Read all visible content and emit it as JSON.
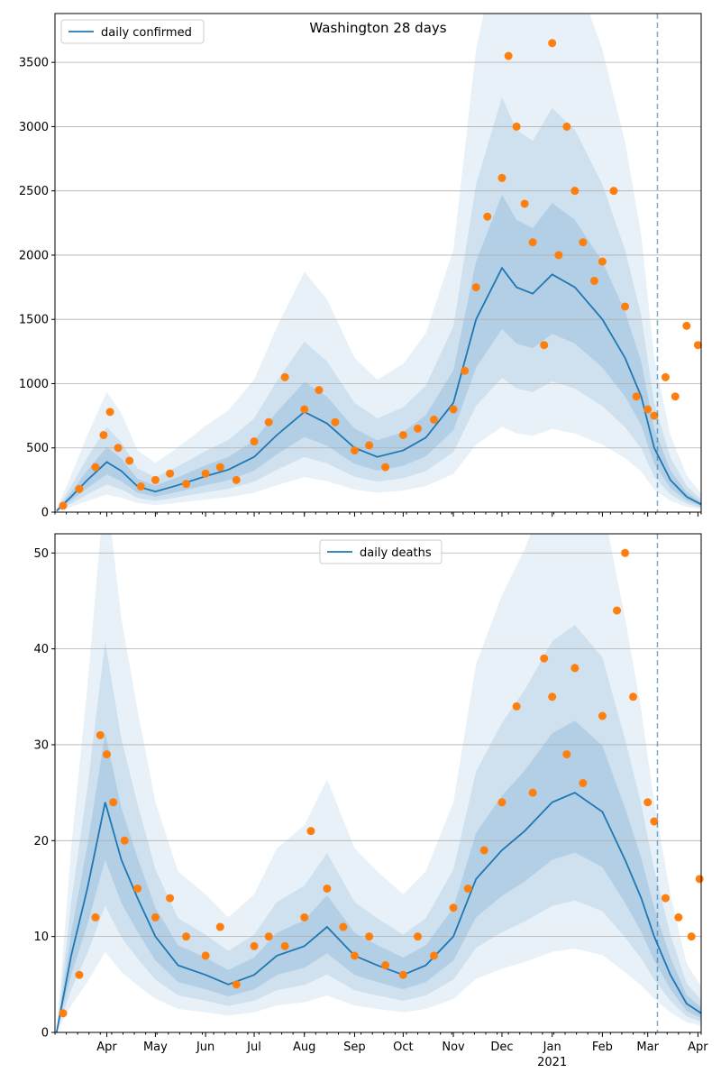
{
  "chart_data": [
    {
      "type": "line",
      "title": "Washington 28 days",
      "legend": [
        "daily confirmed"
      ],
      "legend_placement": "top-left",
      "ylim": [
        0,
        3880
      ],
      "yticks": [
        0,
        500,
        1000,
        1500,
        2000,
        2500,
        3000,
        3500
      ],
      "grid": "y",
      "series": [
        {
          "name": "daily confirmed",
          "kind": "line",
          "color": "#1f77b4",
          "x": [
            "2020-03-01",
            "2020-03-10",
            "2020-03-20",
            "2020-04-01",
            "2020-04-10",
            "2020-04-20",
            "2020-05-01",
            "2020-05-15",
            "2020-06-01",
            "2020-06-15",
            "2020-07-01",
            "2020-07-15",
            "2020-08-01",
            "2020-08-15",
            "2020-09-01",
            "2020-09-15",
            "2020-10-01",
            "2020-10-15",
            "2020-11-01",
            "2020-11-15",
            "2020-12-01",
            "2020-12-10",
            "2020-12-20",
            "2021-01-01",
            "2021-01-15",
            "2021-02-01",
            "2021-02-15",
            "2021-02-25",
            "2021-03-05",
            "2021-03-15",
            "2021-03-25",
            "2021-04-03"
          ],
          "values": [
            10,
            120,
            250,
            390,
            320,
            200,
            160,
            210,
            280,
            330,
            430,
            600,
            780,
            690,
            500,
            430,
            480,
            580,
            850,
            1500,
            1900,
            1750,
            1700,
            1850,
            1750,
            1500,
            1200,
            900,
            500,
            250,
            120,
            60
          ]
        },
        {
          "name": "observed",
          "kind": "scatter",
          "color": "#ff7f0e",
          "x": [
            "2020-03-05",
            "2020-03-15",
            "2020-03-25",
            "2020-03-30",
            "2020-04-03",
            "2020-04-08",
            "2020-04-15",
            "2020-04-22",
            "2020-05-01",
            "2020-05-10",
            "2020-05-20",
            "2020-06-01",
            "2020-06-10",
            "2020-06-20",
            "2020-07-01",
            "2020-07-10",
            "2020-07-20",
            "2020-08-01",
            "2020-08-10",
            "2020-08-20",
            "2020-09-01",
            "2020-09-10",
            "2020-09-20",
            "2020-10-01",
            "2020-10-10",
            "2020-10-20",
            "2020-11-01",
            "2020-11-08",
            "2020-11-15",
            "2020-11-22",
            "2020-12-01",
            "2020-12-05",
            "2020-12-10",
            "2020-12-15",
            "2020-12-20",
            "2020-12-27",
            "2021-01-01",
            "2021-01-05",
            "2021-01-10",
            "2021-01-15",
            "2021-01-20",
            "2021-01-27",
            "2021-02-01",
            "2021-02-08",
            "2021-02-15",
            "2021-02-22",
            "2021-03-01",
            "2021-03-05",
            "2021-03-12",
            "2021-03-18",
            "2021-03-25",
            "2021-04-01"
          ],
          "values": [
            50,
            180,
            350,
            600,
            780,
            500,
            400,
            200,
            250,
            300,
            220,
            300,
            350,
            250,
            550,
            700,
            1050,
            800,
            950,
            700,
            480,
            520,
            350,
            600,
            650,
            720,
            800,
            1100,
            1750,
            2300,
            2600,
            3550,
            3000,
            2400,
            2100,
            1300,
            3650,
            2000,
            3000,
            2500,
            2100,
            1800,
            1950,
            2500,
            1600,
            900,
            800,
            750,
            1050,
            900,
            1450,
            1300
          ]
        }
      ]
    },
    {
      "type": "line",
      "title": "",
      "legend": [
        "daily deaths"
      ],
      "legend_placement": "top-center",
      "ylim": [
        0,
        52
      ],
      "yticks": [
        0,
        10,
        20,
        30,
        40,
        50
      ],
      "grid": "y",
      "series": [
        {
          "name": "daily deaths",
          "kind": "line",
          "color": "#1f77b4",
          "x": [
            "2020-03-01",
            "2020-03-10",
            "2020-03-20",
            "2020-03-31",
            "2020-04-10",
            "2020-04-20",
            "2020-05-01",
            "2020-05-15",
            "2020-06-01",
            "2020-06-15",
            "2020-07-01",
            "2020-07-15",
            "2020-08-01",
            "2020-08-15",
            "2020-09-01",
            "2020-09-15",
            "2020-10-01",
            "2020-10-15",
            "2020-11-01",
            "2020-11-15",
            "2020-12-01",
            "2020-12-15",
            "2021-01-01",
            "2021-01-15",
            "2021-02-01",
            "2021-02-15",
            "2021-02-25",
            "2021-03-05",
            "2021-03-15",
            "2021-03-25",
            "2021-04-03"
          ],
          "values": [
            0,
            8,
            15,
            24,
            18,
            14,
            10,
            7,
            6,
            5,
            6,
            8,
            9,
            11,
            8,
            7,
            6,
            7,
            10,
            16,
            19,
            21,
            24,
            25,
            23,
            18,
            14,
            10,
            6,
            3,
            2
          ]
        },
        {
          "name": "observed",
          "kind": "scatter",
          "color": "#ff7f0e",
          "x": [
            "2020-03-05",
            "2020-03-15",
            "2020-03-25",
            "2020-03-28",
            "2020-04-01",
            "2020-04-05",
            "2020-04-12",
            "2020-04-20",
            "2020-05-01",
            "2020-05-10",
            "2020-05-20",
            "2020-06-01",
            "2020-06-10",
            "2020-06-20",
            "2020-07-01",
            "2020-07-10",
            "2020-07-20",
            "2020-08-01",
            "2020-08-05",
            "2020-08-15",
            "2020-08-25",
            "2020-09-01",
            "2020-09-10",
            "2020-09-20",
            "2020-10-01",
            "2020-10-10",
            "2020-10-20",
            "2020-11-01",
            "2020-11-10",
            "2020-11-20",
            "2020-12-01",
            "2020-12-10",
            "2020-12-20",
            "2020-12-27",
            "2021-01-01",
            "2021-01-10",
            "2021-01-15",
            "2021-01-20",
            "2021-02-01",
            "2021-02-10",
            "2021-02-15",
            "2021-02-20",
            "2021-03-01",
            "2021-03-05",
            "2021-03-12",
            "2021-03-20",
            "2021-03-28",
            "2021-04-02"
          ],
          "values": [
            2,
            6,
            12,
            31,
            29,
            24,
            20,
            15,
            12,
            14,
            10,
            8,
            11,
            5,
            9,
            10,
            9,
            12,
            21,
            15,
            11,
            8,
            10,
            7,
            6,
            10,
            8,
            13,
            15,
            19,
            24,
            34,
            25,
            39,
            35,
            29,
            38,
            26,
            33,
            44,
            50,
            35,
            24,
            22,
            14,
            12,
            10,
            16
          ]
        }
      ]
    }
  ],
  "x_axis": {
    "range": [
      "2020-02-29",
      "2021-04-03"
    ],
    "tick_labels": [
      {
        "date": "2020-04-01",
        "label": "Apr"
      },
      {
        "date": "2020-05-01",
        "label": "May"
      },
      {
        "date": "2020-06-01",
        "label": "Jun"
      },
      {
        "date": "2020-07-01",
        "label": "Jul"
      },
      {
        "date": "2020-08-01",
        "label": "Aug"
      },
      {
        "date": "2020-09-01",
        "label": "Sep"
      },
      {
        "date": "2020-10-01",
        "label": "Oct"
      },
      {
        "date": "2020-11-01",
        "label": "Nov"
      },
      {
        "date": "2020-12-01",
        "label": "Dec"
      },
      {
        "date": "2021-01-01",
        "label": "Jan"
      },
      {
        "date": "2021-02-01",
        "label": "Feb"
      },
      {
        "date": "2021-03-01",
        "label": "Mar"
      },
      {
        "date": "2021-04-01",
        "label": "Apr"
      }
    ],
    "year_label": "2021",
    "year_label_date": "2021-01-01",
    "vline_date": "2021-03-07"
  },
  "colors": {
    "line": "#1f77b4",
    "scatter": "#ff7f0e",
    "band": "#1f77b4",
    "grid": "#b0b0b0"
  }
}
